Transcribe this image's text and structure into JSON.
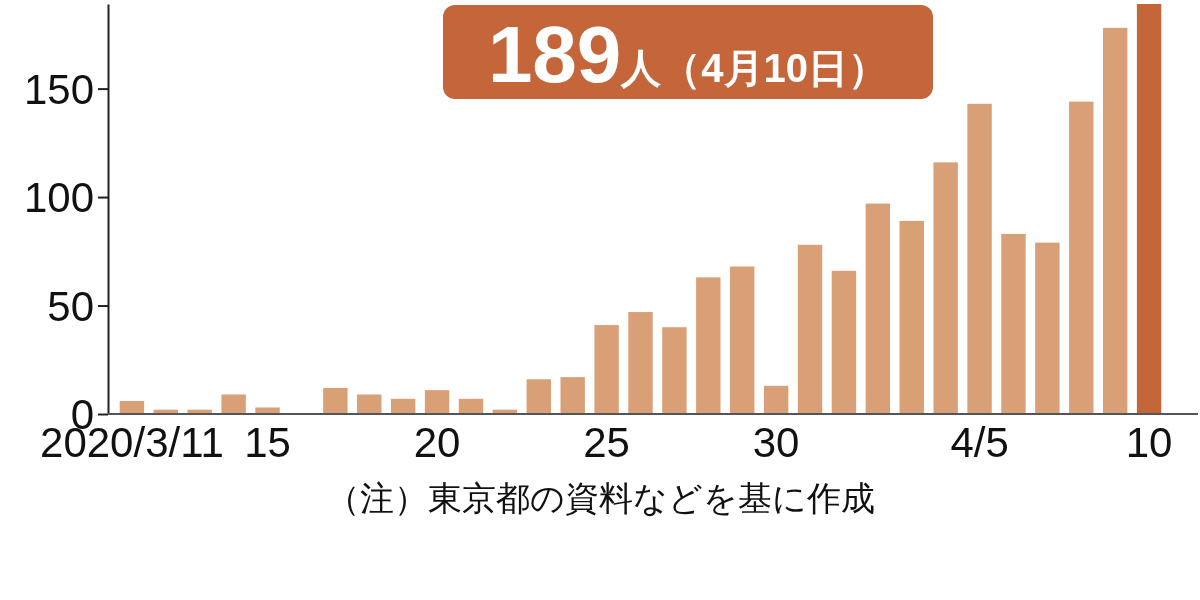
{
  "chart_data": {
    "type": "bar",
    "categories": [
      "2020/3/11",
      null,
      null,
      null,
      "15",
      null,
      null,
      null,
      null,
      "20",
      null,
      null,
      null,
      null,
      "25",
      null,
      null,
      null,
      null,
      "30",
      null,
      null,
      null,
      null,
      null,
      "4/5",
      null,
      null,
      null,
      null,
      "10"
    ],
    "values": [
      6,
      2,
      2,
      9,
      3,
      0,
      12,
      9,
      7,
      11,
      7,
      2,
      16,
      17,
      41,
      47,
      40,
      63,
      68,
      13,
      78,
      66,
      97,
      89,
      116,
      143,
      83,
      79,
      144,
      178,
      189
    ],
    "colors": [
      "#d9a077",
      "#d9a077",
      "#d9a077",
      "#d9a077",
      "#d9a077",
      "#d9a077",
      "#d9a077",
      "#d9a077",
      "#d9a077",
      "#d9a077",
      "#d9a077",
      "#d9a077",
      "#d9a077",
      "#d9a077",
      "#d9a077",
      "#d9a077",
      "#d9a077",
      "#d9a077",
      "#d9a077",
      "#d9a077",
      "#d9a077",
      "#d9a077",
      "#d9a077",
      "#d9a077",
      "#d9a077",
      "#d9a077",
      "#d9a077",
      "#d9a077",
      "#d9a077",
      "#d9a077",
      "#c4663a"
    ],
    "ylim": [
      0,
      189
    ],
    "yticks": [
      0,
      50,
      100,
      150
    ],
    "annotations": [
      "189人（4月10日）",
      "（注）東京都の資料などを基に作成"
    ]
  }
}
